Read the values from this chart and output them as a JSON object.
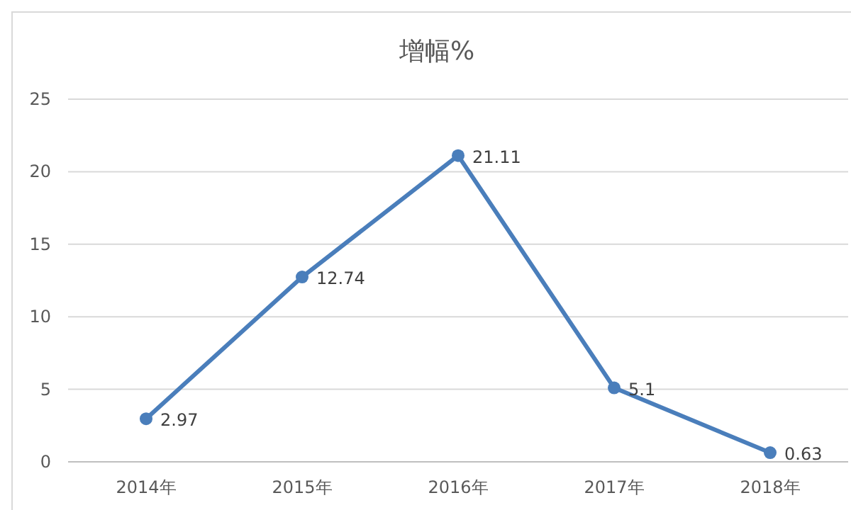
{
  "chart_data": {
    "type": "line",
    "title": "增幅%",
    "categories": [
      "2014年",
      "2015年",
      "2016年",
      "2017年",
      "2018年"
    ],
    "series": [
      {
        "color": "#4a7ebb",
        "values": [
          2.97,
          12.74,
          21.11,
          5.1,
          0.63
        ]
      }
    ],
    "ylim": [
      0,
      25
    ],
    "yticks": [
      0,
      5,
      10,
      15,
      20,
      25
    ],
    "grid": "y",
    "marker": "circle",
    "line_style": "solid",
    "data_labels": true
  }
}
